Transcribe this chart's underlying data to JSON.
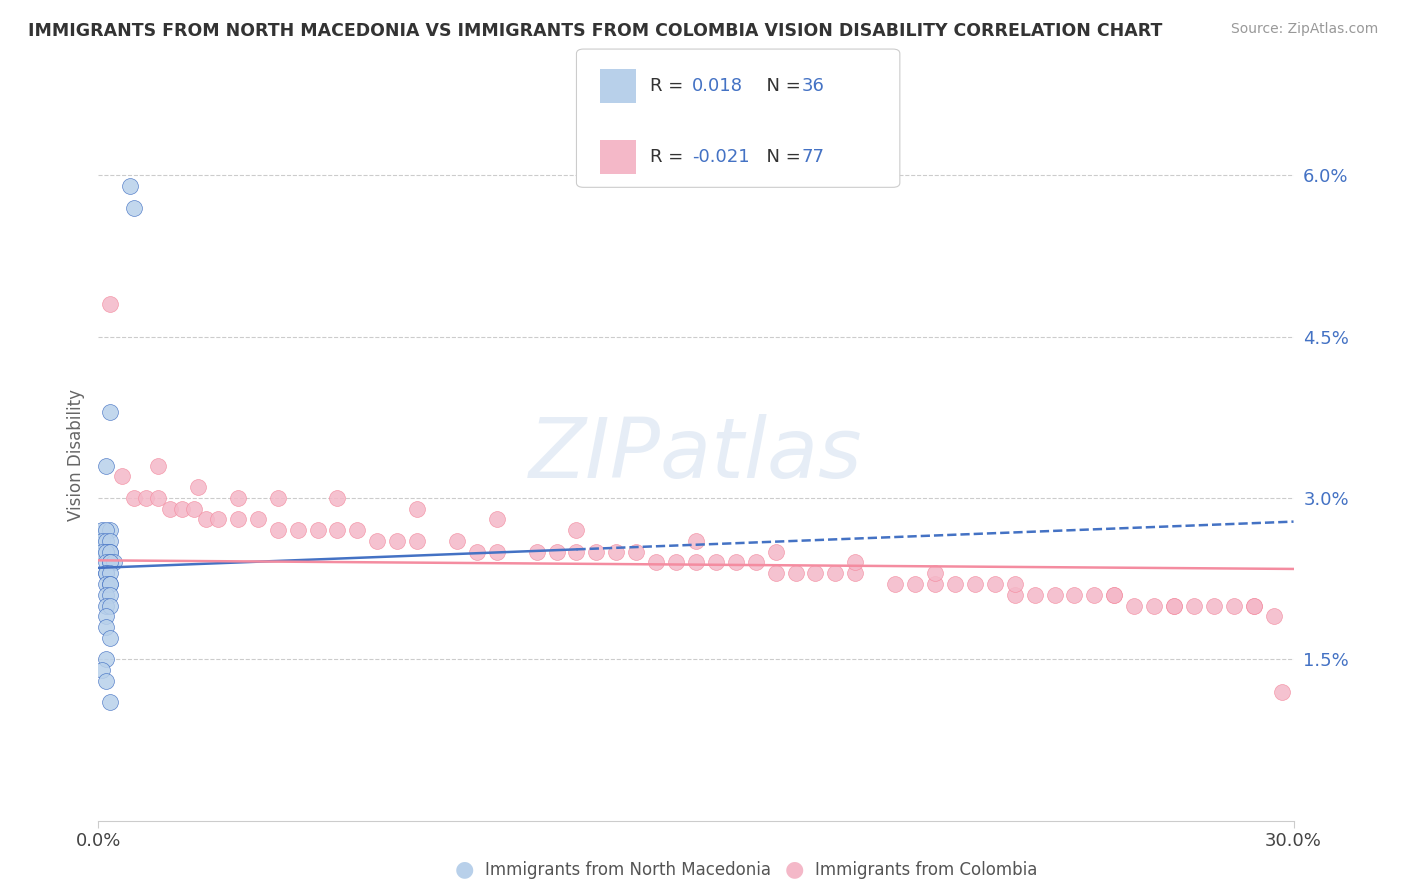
{
  "title": "IMMIGRANTS FROM NORTH MACEDONIA VS IMMIGRANTS FROM COLOMBIA VISION DISABILITY CORRELATION CHART",
  "source": "Source: ZipAtlas.com",
  "ylabel": "Vision Disability",
  "xlim": [
    0.0,
    0.3
  ],
  "ylim": [
    0.0,
    0.068
  ],
  "legend_r1": "0.018",
  "legend_n1": "36",
  "legend_r2": "-0.021",
  "legend_n2": "77",
  "color_blue": "#b8d0ea",
  "color_pink": "#f4b8c8",
  "color_blue_line": "#4472c4",
  "color_pink_line": "#f48ca0",
  "color_text_blue": "#4472c4",
  "color_grid": "#cccccc",
  "north_macedonia_x": [
    0.008,
    0.009,
    0.003,
    0.002,
    0.001,
    0.003,
    0.002,
    0.001,
    0.002,
    0.003,
    0.003,
    0.002,
    0.001,
    0.002,
    0.003,
    0.002,
    0.003,
    0.004,
    0.003,
    0.002,
    0.002,
    0.003,
    0.002,
    0.003,
    0.003,
    0.002,
    0.003,
    0.002,
    0.003,
    0.002,
    0.002,
    0.003,
    0.002,
    0.001,
    0.002,
    0.003
  ],
  "north_macedonia_y": [
    0.059,
    0.057,
    0.038,
    0.033,
    0.027,
    0.027,
    0.027,
    0.026,
    0.026,
    0.026,
    0.025,
    0.025,
    0.025,
    0.025,
    0.025,
    0.024,
    0.024,
    0.024,
    0.024,
    0.023,
    0.023,
    0.023,
    0.022,
    0.022,
    0.022,
    0.021,
    0.021,
    0.02,
    0.02,
    0.019,
    0.018,
    0.017,
    0.015,
    0.014,
    0.013,
    0.011
  ],
  "colombia_x": [
    0.003,
    0.006,
    0.009,
    0.012,
    0.015,
    0.018,
    0.021,
    0.024,
    0.027,
    0.03,
    0.035,
    0.04,
    0.045,
    0.05,
    0.055,
    0.06,
    0.065,
    0.07,
    0.075,
    0.08,
    0.09,
    0.095,
    0.1,
    0.11,
    0.115,
    0.12,
    0.125,
    0.13,
    0.135,
    0.14,
    0.145,
    0.15,
    0.155,
    0.16,
    0.165,
    0.17,
    0.175,
    0.18,
    0.185,
    0.19,
    0.2,
    0.205,
    0.21,
    0.215,
    0.22,
    0.225,
    0.23,
    0.235,
    0.24,
    0.245,
    0.25,
    0.255,
    0.26,
    0.265,
    0.27,
    0.275,
    0.28,
    0.285,
    0.29,
    0.295,
    0.015,
    0.025,
    0.035,
    0.045,
    0.06,
    0.08,
    0.1,
    0.12,
    0.15,
    0.17,
    0.19,
    0.21,
    0.23,
    0.255,
    0.27,
    0.29,
    0.297
  ],
  "colombia_y": [
    0.048,
    0.032,
    0.03,
    0.03,
    0.03,
    0.029,
    0.029,
    0.029,
    0.028,
    0.028,
    0.028,
    0.028,
    0.027,
    0.027,
    0.027,
    0.027,
    0.027,
    0.026,
    0.026,
    0.026,
    0.026,
    0.025,
    0.025,
    0.025,
    0.025,
    0.025,
    0.025,
    0.025,
    0.025,
    0.024,
    0.024,
    0.024,
    0.024,
    0.024,
    0.024,
    0.023,
    0.023,
    0.023,
    0.023,
    0.023,
    0.022,
    0.022,
    0.022,
    0.022,
    0.022,
    0.022,
    0.021,
    0.021,
    0.021,
    0.021,
    0.021,
    0.021,
    0.02,
    0.02,
    0.02,
    0.02,
    0.02,
    0.02,
    0.02,
    0.019,
    0.033,
    0.031,
    0.03,
    0.03,
    0.03,
    0.029,
    0.028,
    0.027,
    0.026,
    0.025,
    0.024,
    0.023,
    0.022,
    0.021,
    0.02,
    0.02,
    0.012
  ],
  "nm_trend_x": [
    0.0,
    0.3
  ],
  "nm_trend_y": [
    0.0235,
    0.0278
  ],
  "col_trend_x": [
    0.0,
    0.3
  ],
  "col_trend_y": [
    0.0242,
    0.0234
  ],
  "ytick_vals": [
    0.015,
    0.03,
    0.045,
    0.06
  ],
  "ytick_labels": [
    "1.5%",
    "3.0%",
    "4.5%",
    "6.0%"
  ]
}
